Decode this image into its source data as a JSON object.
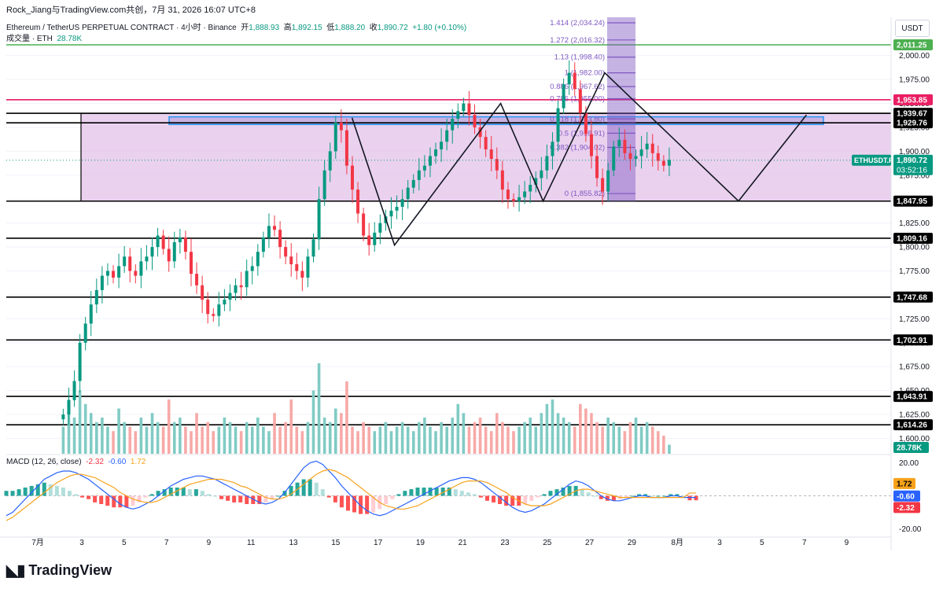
{
  "header": {
    "publisher": "Rock_Jiang与TradingView.com共创，7月 31, 2026 16:07 UTC+8",
    "symbol": "Ethereum / TetherUS PERPETUAL CONTRACT · 4小时 · Binance",
    "open_label": "开",
    "open": "1,888.93",
    "high_label": "高",
    "high": "1,892.15",
    "low_label": "低",
    "low": "1,888.20",
    "close_label": "收",
    "close": "1,890.72",
    "change": "+1.80 (+0.10%)",
    "volume_label": "成交量 · ETH",
    "volume": "28.78K",
    "macd_label": "MACD (12, 26, close)",
    "macd_hist": "-2.32",
    "macd_line": "-0.60",
    "macd_signal": "1.72"
  },
  "currency_button": "USDT",
  "brand": "TradingView",
  "colors": {
    "up": "#089981",
    "down": "#f23645",
    "macd": "#2962ff",
    "signal": "#f7a21b",
    "zone": "#e1bee7",
    "fib": "#7e57c2",
    "magenta": "#e91e63",
    "green_line": "#4caf50"
  },
  "chart_data": {
    "type": "candlestick",
    "price_axis": {
      "min": 1584,
      "max": 2040,
      "ticks": [
        1600,
        1625,
        1650,
        1675,
        1700,
        1725,
        1750,
        1775,
        1800,
        1825,
        1850,
        1875,
        1900,
        1925,
        1950,
        1975,
        2000
      ]
    },
    "x_ticks": [
      "7月",
      "3",
      "5",
      "7",
      "9",
      "11",
      "13",
      "15",
      "17",
      "19",
      "21",
      "23",
      "25",
      "27",
      "29",
      "8月",
      "3",
      "5",
      "7",
      "9"
    ],
    "last_price": "1,890.72",
    "countdown": "03:52:16",
    "symbol_tag": "ETHUSDT.P",
    "price_path": [
      1625,
      1640,
      1660,
      1700,
      1720,
      1740,
      1755,
      1770,
      1775,
      1768,
      1780,
      1790,
      1775,
      1770,
      1785,
      1790,
      1800,
      1812,
      1798,
      1785,
      1805,
      1810,
      1795,
      1772,
      1760,
      1745,
      1730,
      1728,
      1740,
      1745,
      1752,
      1760,
      1758,
      1775,
      1780,
      1795,
      1810,
      1822,
      1818,
      1800,
      1790,
      1782,
      1775,
      1768,
      1790,
      1808,
      1850,
      1880,
      1900,
      1930,
      1922,
      1885,
      1860,
      1835,
      1812,
      1802,
      1815,
      1825,
      1832,
      1838,
      1842,
      1850,
      1862,
      1870,
      1880,
      1885,
      1895,
      1902,
      1910,
      1922,
      1934,
      1942,
      1950,
      1938,
      1925,
      1915,
      1902,
      1892,
      1880,
      1860,
      1850,
      1848,
      1852,
      1858,
      1865,
      1872,
      1880,
      1895,
      1910,
      1945,
      1970,
      1982,
      1965,
      1940,
      1918,
      1895,
      1872,
      1858,
      1880,
      1905,
      1912,
      1898,
      1892,
      1895,
      1902,
      1908,
      1898,
      1890,
      1885,
      1891
    ],
    "volume_path": [
      30,
      60,
      40,
      70,
      55,
      45,
      35,
      40,
      30,
      25,
      50,
      35,
      30,
      25,
      40,
      30,
      45,
      35,
      30,
      60,
      35,
      40,
      30,
      25,
      45,
      30,
      35,
      25,
      30,
      40,
      35,
      30,
      25,
      35,
      30,
      40,
      30,
      25,
      45,
      30,
      35,
      60,
      30,
      25,
      35,
      70,
      100,
      40,
      35,
      50,
      45,
      80,
      30,
      25,
      35,
      30,
      25,
      30,
      35,
      25,
      30,
      35,
      30,
      25,
      35,
      40,
      30,
      25,
      35,
      30,
      40,
      55,
      45,
      30,
      35,
      40,
      30,
      25,
      45,
      35,
      30,
      25,
      30,
      35,
      40,
      30,
      45,
      55,
      60,
      45,
      40,
      35,
      30,
      55,
      50,
      45,
      35,
      30,
      40,
      35,
      30,
      25,
      35,
      40,
      30,
      35,
      30,
      25,
      20,
      10
    ],
    "macd_axis": {
      "min": -25,
      "max": 25,
      "ticks": [
        20,
        -20
      ]
    },
    "macd_path": [
      -12,
      -10,
      -6,
      -2,
      2,
      6,
      10,
      12,
      14,
      15,
      15,
      14,
      12,
      10,
      7,
      4,
      1,
      -2,
      -5,
      -7,
      -8,
      -7,
      -5,
      -3,
      0,
      3,
      6,
      8,
      10,
      11,
      12,
      12,
      11,
      10,
      8,
      6,
      4,
      2,
      0,
      -2,
      -4,
      -5,
      -4,
      -2,
      2,
      7,
      12,
      17,
      20,
      21,
      19,
      15,
      11,
      6,
      2,
      -2,
      -6,
      -9,
      -11,
      -12,
      -11,
      -9,
      -7,
      -5,
      -3,
      -1,
      1,
      3,
      5,
      7,
      9,
      10,
      11,
      11,
      10,
      8,
      5,
      2,
      -1,
      -4,
      -7,
      -9,
      -10,
      -9,
      -7,
      -5,
      -2,
      1,
      4,
      7,
      9,
      8,
      6,
      3,
      0,
      -2,
      -3,
      -3,
      -2,
      -1,
      0,
      0,
      -1,
      -1,
      -1,
      0,
      0,
      -1,
      -1,
      -1
    ],
    "signal_path": [
      -15,
      -13,
      -10,
      -7,
      -4,
      -1,
      2,
      5,
      8,
      10,
      12,
      13,
      13,
      12,
      11,
      9,
      7,
      5,
      2,
      0,
      -2,
      -3,
      -4,
      -4,
      -3,
      -1,
      1,
      3,
      5,
      7,
      8,
      9,
      10,
      10,
      10,
      9,
      8,
      6,
      5,
      3,
      1,
      -1,
      -2,
      -2,
      -1,
      1,
      4,
      7,
      10,
      13,
      15,
      16,
      15,
      13,
      11,
      8,
      5,
      2,
      -1,
      -4,
      -6,
      -7,
      -8,
      -8,
      -7,
      -6,
      -4,
      -2,
      0,
      2,
      4,
      6,
      8,
      9,
      9,
      9,
      8,
      6,
      4,
      2,
      -1,
      -3,
      -5,
      -6,
      -6,
      -6,
      -5,
      -3,
      -1,
      1,
      3,
      4,
      4,
      3,
      2,
      1,
      0,
      -1,
      -1,
      -1,
      -1,
      -1,
      -1,
      -1,
      -1,
      -1,
      -1,
      -1,
      1.7,
      1.7
    ],
    "support_resistance": [
      {
        "price": 2011.25,
        "label": "2,011.25",
        "color": "#4caf50"
      },
      {
        "price": 1953.85,
        "label": "1,953.85",
        "color": "#e91e63"
      },
      {
        "price": 1939.67,
        "label": "1,939.67",
        "color": "#000000"
      },
      {
        "price": 1929.76,
        "label": "1,929.76",
        "color": "#000000"
      },
      {
        "price": 1847.95,
        "label": "1,847.95",
        "color": "#000000"
      },
      {
        "price": 1809.16,
        "label": "1,809.16",
        "color": "#000000"
      },
      {
        "price": 1747.68,
        "label": "1,747.68",
        "color": "#000000"
      },
      {
        "price": 1702.91,
        "label": "1,702.91",
        "color": "#000000"
      },
      {
        "price": 1643.91,
        "label": "1,643.91",
        "color": "#000000"
      },
      {
        "price": 1614.26,
        "label": "1,614.26",
        "color": "#000000"
      }
    ],
    "fib_levels": [
      {
        "label": "1.414 (2,034.24)",
        "price": 2034.24
      },
      {
        "label": "1.272 (2,016.32)",
        "price": 2016.32
      },
      {
        "label": "1.13 (1,998.40)",
        "price": 1998.4
      },
      {
        "label": "1 (1,982.00)",
        "price": 1982.0
      },
      {
        "label": "0.886 (1,967.62)",
        "price": 1967.62
      },
      {
        "label": "0.786 (1,955.00)",
        "price": 1955.0
      },
      {
        "label": "0.618 (1,933.80)",
        "price": 1933.8
      },
      {
        "label": "0.5 (1,918.91)",
        "price": 1918.91
      },
      {
        "label": "0.382 (1,904.02)",
        "price": 1904.02
      },
      {
        "label": "0 (1,855.82)",
        "price": 1855.82
      }
    ],
    "zigzag": [
      {
        "x": "15.8",
        "price": 1935
      },
      {
        "x": "17.8",
        "price": 1802
      },
      {
        "x": "22.8",
        "price": 1950
      },
      {
        "x": "24.8",
        "price": 1848
      },
      {
        "x": "27.7",
        "price": 1982
      },
      {
        "x": "8月3",
        "price": 1848
      },
      {
        "x": "8月6.2",
        "price": 1938
      }
    ]
  }
}
